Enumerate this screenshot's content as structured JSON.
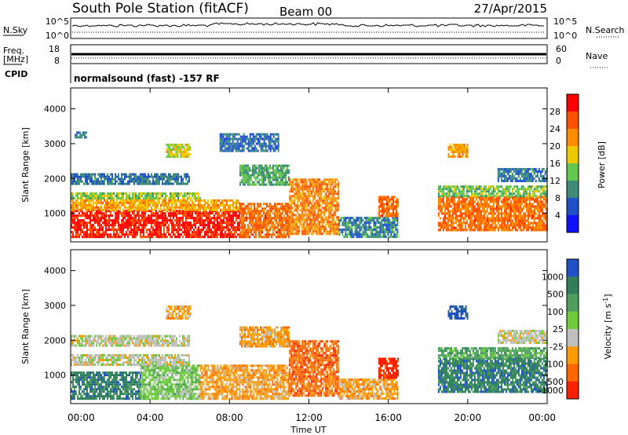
{
  "header": {
    "station": "South Pole Station (fitACF)",
    "beam": "Beam 00",
    "date": "27/Apr/2015"
  },
  "parameters": {
    "nsky_label": "N.Sky",
    "nsky_ticks": [
      "10^5",
      "10^0"
    ],
    "nsearch_label": "N.Search",
    "freq_label_line1": "Freq.",
    "freq_label_line2": "[MHz]",
    "freq_ticks": [
      "18",
      "8"
    ],
    "nave_label": "Nave",
    "nave_ticks": [
      "60",
      "0"
    ],
    "cpid_label": "CPID",
    "cpid_text": "normalsound (fast) -157 RF"
  },
  "chart_data": [
    {
      "type": "heatmap",
      "name": "power",
      "xlabel": "",
      "ylabel": "Slant Range [km]",
      "y_ticks": [
        "1000",
        "2000",
        "3000",
        "4000"
      ],
      "y_tick_values": [
        1000,
        2000,
        3000,
        4000
      ],
      "ylim": [
        180,
        4600
      ],
      "xlim": [
        0,
        24
      ],
      "colorbar": {
        "label": "Power [dB]",
        "ticks": [
          "4",
          "8",
          "12",
          "16",
          "20",
          "24",
          "28"
        ],
        "range": [
          0,
          30
        ],
        "colors": [
          "#1010ff",
          "#1e50c8",
          "#3c8c78",
          "#64c850",
          "#f0c800",
          "#ff8c00",
          "#ff5000",
          "#ff0000"
        ]
      },
      "regions": [
        {
          "t0": 0.0,
          "t1": 8.5,
          "r0": 300,
          "r1": 1100,
          "level": 29
        },
        {
          "t0": 0.0,
          "t1": 8.5,
          "r0": 1100,
          "r1": 1400,
          "level": 20
        },
        {
          "t0": 0.0,
          "t1": 6.5,
          "r0": 1400,
          "r1": 1600,
          "level": 14
        },
        {
          "t0": 0.0,
          "t1": 6.0,
          "r0": 1850,
          "r1": 2150,
          "level": 7
        },
        {
          "t0": 0.2,
          "t1": 0.8,
          "r0": 3150,
          "r1": 3350,
          "level": 7
        },
        {
          "t0": 4.8,
          "t1": 6.0,
          "r0": 2600,
          "r1": 3000,
          "level": 16
        },
        {
          "t0": 8.5,
          "t1": 11.0,
          "r0": 300,
          "r1": 1300,
          "level": 24
        },
        {
          "t0": 8.5,
          "t1": 11.0,
          "r0": 1800,
          "r1": 2400,
          "level": 11
        },
        {
          "t0": 7.5,
          "t1": 10.5,
          "r0": 2800,
          "r1": 3300,
          "level": 6
        },
        {
          "t0": 11.0,
          "t1": 13.5,
          "r0": 400,
          "r1": 2000,
          "level": 22
        },
        {
          "t0": 13.5,
          "t1": 16.5,
          "r0": 300,
          "r1": 900,
          "level": 8
        },
        {
          "t0": 15.5,
          "t1": 16.5,
          "r0": 900,
          "r1": 1500,
          "level": 24
        },
        {
          "t0": 18.5,
          "t1": 24.0,
          "r0": 500,
          "r1": 1500,
          "level": 24
        },
        {
          "t0": 18.5,
          "t1": 24.0,
          "r0": 1500,
          "r1": 1800,
          "level": 13
        },
        {
          "t0": 19.0,
          "t1": 20.0,
          "r0": 2600,
          "r1": 3000,
          "level": 20
        },
        {
          "t0": 21.5,
          "t1": 24.0,
          "r0": 1900,
          "r1": 2300,
          "level": 7
        }
      ]
    },
    {
      "type": "heatmap",
      "name": "velocity",
      "xlabel": "Time UT",
      "ylabel": "Slant Range [km]",
      "x_ticks": [
        "00:00",
        "04:00",
        "08:00",
        "12:00",
        "16:00",
        "20:00",
        "00:00"
      ],
      "x_tick_values": [
        0,
        4,
        8,
        12,
        16,
        20,
        24
      ],
      "y_ticks": [
        "1000",
        "2000",
        "3000",
        "4000"
      ],
      "y_tick_values": [
        1000,
        2000,
        3000,
        4000
      ],
      "ylim": [
        180,
        4600
      ],
      "xlim": [
        0,
        24
      ],
      "colorbar": {
        "label": "Velocity [m s^-1]",
        "ticks": [
          "1000",
          "500",
          "100",
          "25",
          "-25",
          "-100",
          "-500",
          "-1000"
        ],
        "colors": [
          "#2050c8",
          "#2f7f5a",
          "#4e9f5e",
          "#6ccc3a",
          "#c0c0c0",
          "#ff9c00",
          "#ff6600",
          "#ff2000"
        ]
      },
      "regions": [
        {
          "t0": 0.0,
          "t1": 3.5,
          "r0": 300,
          "r1": 1100,
          "cls": 1
        },
        {
          "t0": 3.5,
          "t1": 6.5,
          "r0": 300,
          "r1": 1300,
          "cls": 3
        },
        {
          "t0": 6.5,
          "t1": 11.0,
          "r0": 300,
          "r1": 1300,
          "cls": 5
        },
        {
          "t0": 0.0,
          "t1": 6.0,
          "r0": 1300,
          "r1": 1600,
          "cls": 4
        },
        {
          "t0": 0.0,
          "t1": 6.0,
          "r0": 1850,
          "r1": 2150,
          "cls": 4
        },
        {
          "t0": 4.8,
          "t1": 6.0,
          "r0": 2600,
          "r1": 3000,
          "cls": 5
        },
        {
          "t0": 8.5,
          "t1": 11.0,
          "r0": 1800,
          "r1": 2400,
          "cls": 5
        },
        {
          "t0": 11.0,
          "t1": 13.5,
          "r0": 400,
          "r1": 2000,
          "cls": 6
        },
        {
          "t0": 13.5,
          "t1": 16.5,
          "r0": 300,
          "r1": 900,
          "cls": 5
        },
        {
          "t0": 15.5,
          "t1": 16.5,
          "r0": 900,
          "r1": 1500,
          "cls": 7
        },
        {
          "t0": 18.5,
          "t1": 24.0,
          "r0": 500,
          "r1": 1500,
          "cls": 1
        },
        {
          "t0": 18.5,
          "t1": 24.0,
          "r0": 1500,
          "r1": 1800,
          "cls": 2
        },
        {
          "t0": 19.0,
          "t1": 20.0,
          "r0": 2600,
          "r1": 3000,
          "cls": 0
        },
        {
          "t0": 21.5,
          "t1": 24.0,
          "r0": 1900,
          "r1": 2300,
          "cls": 4
        }
      ]
    }
  ]
}
